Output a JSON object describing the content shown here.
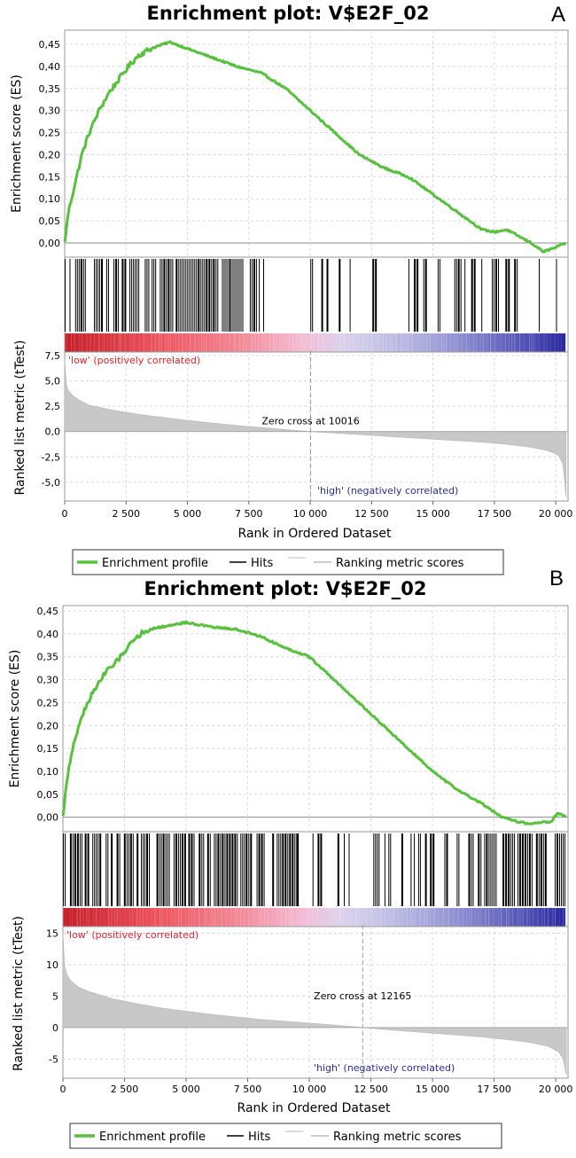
{
  "chart_data": [
    {
      "panel_letter": "A",
      "type": "line",
      "title": "Enrichment plot: V$E2F_02",
      "es_ylabel": "Enrichment score (ES)",
      "ranked_ylabel": "Ranked list metric (tTest)",
      "xlabel": "Rank in Ordered Dataset",
      "xlim": [
        0,
        20500
      ],
      "x_ticks": [
        0,
        2500,
        5000,
        7500,
        10000,
        12500,
        15000,
        17500,
        20000
      ],
      "x_tick_labels": [
        "0",
        "2 500",
        "5 000",
        "7 500",
        "10 000",
        "12 500",
        "15 000",
        "17 500",
        "20 000"
      ],
      "es_ylim": [
        -0.02,
        0.47
      ],
      "es_ticks": [
        0.0,
        0.05,
        0.1,
        0.15,
        0.2,
        0.25,
        0.3,
        0.35,
        0.4,
        0.45
      ],
      "es_tick_labels": [
        "0,00",
        "0,05",
        "0,10",
        "0,15",
        "0,20",
        "0,25",
        "0,30",
        "0,35",
        "0,40",
        "0,45"
      ],
      "es_curve": {
        "x": [
          0,
          150,
          400,
          700,
          1000,
          1400,
          1800,
          2200,
          2600,
          3000,
          3500,
          4000,
          4300,
          5000,
          6000,
          7000,
          8000,
          9000,
          10000,
          11000,
          12000,
          13000,
          14000,
          15000,
          16000,
          17000,
          17500,
          18000,
          19000,
          19500,
          20000,
          20400
        ],
        "y": [
          0.0,
          0.07,
          0.13,
          0.2,
          0.25,
          0.3,
          0.34,
          0.37,
          0.4,
          0.425,
          0.44,
          0.45,
          0.455,
          0.44,
          0.42,
          0.4,
          0.385,
          0.35,
          0.3,
          0.25,
          0.2,
          0.17,
          0.15,
          0.11,
          0.07,
          0.03,
          0.025,
          0.03,
          0.0,
          -0.02,
          -0.01,
          0.0
        ]
      },
      "hit_density": [
        {
          "from": 0,
          "to": 7800,
          "density": 0.8
        },
        {
          "from": 7800,
          "to": 10500,
          "density": 0.3
        },
        {
          "from": 10500,
          "to": 14000,
          "density": 0.2
        },
        {
          "from": 14000,
          "to": 17800,
          "density": 0.5
        },
        {
          "from": 17800,
          "to": 19500,
          "density": 0.25
        },
        {
          "from": 19500,
          "to": 20400,
          "density": 0.4
        }
      ],
      "ranked_ylim": [
        -6.5,
        7.5
      ],
      "ranked_ticks": [
        -5.0,
        -2.5,
        0.0,
        2.5,
        5.0,
        7.5
      ],
      "ranked_tick_labels": [
        "-5,0",
        "-2,5",
        "0,0",
        "2,5",
        "5,0",
        "7,5"
      ],
      "ranked_curve": {
        "x": [
          0,
          30,
          100,
          300,
          600,
          1000,
          2000,
          3000,
          4000,
          5000,
          6000,
          7000,
          8000,
          9000,
          10016,
          11000,
          12000,
          13000,
          14000,
          15000,
          16000,
          17000,
          18000,
          19000,
          19700,
          20100,
          20300,
          20420
        ],
        "y": [
          7.0,
          5.2,
          4.2,
          3.6,
          3.1,
          2.6,
          2.1,
          1.7,
          1.4,
          1.1,
          0.85,
          0.6,
          0.4,
          0.2,
          0.0,
          -0.15,
          -0.3,
          -0.45,
          -0.6,
          -0.75,
          -0.9,
          -1.05,
          -1.25,
          -1.55,
          -1.9,
          -2.3,
          -3.2,
          -6.5
        ]
      },
      "zero_cross_rank": 10016,
      "zero_cross_label": "Zero cross at 10016",
      "low_label": "'low' (positively correlated)",
      "high_label": "'high' (negatively correlated)",
      "legend": [
        "Enrichment profile",
        "Hits",
        "Ranking metric scores"
      ]
    },
    {
      "panel_letter": "B",
      "type": "line",
      "title": "Enrichment plot: V$E2F_02",
      "es_ylabel": "Enrichment score (ES)",
      "ranked_ylabel": "Ranked list metric (tTest)",
      "xlabel": "Rank in Ordered Dataset",
      "xlim": [
        0,
        20500
      ],
      "x_ticks": [
        0,
        2500,
        5000,
        7500,
        10000,
        12500,
        15000,
        17500,
        20000
      ],
      "x_tick_labels": [
        "0",
        "2 500",
        "5 000",
        "7 500",
        "10 000",
        "12 500",
        "15 000",
        "17 500",
        "20 000"
      ],
      "es_ylim": [
        -0.02,
        0.45
      ],
      "es_ticks": [
        0.0,
        0.05,
        0.1,
        0.15,
        0.2,
        0.25,
        0.3,
        0.35,
        0.4,
        0.45
      ],
      "es_tick_labels": [
        "0,00",
        "0,05",
        "0,10",
        "0,15",
        "0,20",
        "0,25",
        "0,30",
        "0,35",
        "0,40",
        "0,45"
      ],
      "es_curve": {
        "x": [
          0,
          150,
          400,
          700,
          1000,
          1400,
          1800,
          2200,
          2600,
          3000,
          3500,
          4000,
          4500,
          5000,
          5500,
          6000,
          7000,
          8000,
          9000,
          10000,
          11000,
          12000,
          13000,
          14000,
          15000,
          16000,
          17000,
          17800,
          18500,
          19000,
          19500,
          19800,
          20100,
          20400
        ],
        "y": [
          0.0,
          0.08,
          0.15,
          0.21,
          0.25,
          0.29,
          0.32,
          0.34,
          0.37,
          0.395,
          0.41,
          0.415,
          0.42,
          0.425,
          0.42,
          0.415,
          0.41,
          0.395,
          0.37,
          0.35,
          0.3,
          0.25,
          0.2,
          0.15,
          0.1,
          0.06,
          0.03,
          0.0,
          -0.01,
          -0.015,
          -0.01,
          -0.01,
          0.01,
          0.0
        ]
      },
      "hit_density": [
        {
          "from": 0,
          "to": 9500,
          "density": 0.8
        },
        {
          "from": 9500,
          "to": 11700,
          "density": 0.35
        },
        {
          "from": 11700,
          "to": 12600,
          "density": 0.05
        },
        {
          "from": 12600,
          "to": 17000,
          "density": 0.5
        },
        {
          "from": 17000,
          "to": 20400,
          "density": 0.75
        }
      ],
      "ranked_ylim": [
        -7.5,
        15.5
      ],
      "ranked_ticks": [
        -5,
        0,
        5,
        10,
        15
      ],
      "ranked_tick_labels": [
        "-5",
        "0",
        "5",
        "10",
        "15"
      ],
      "ranked_curve": {
        "x": [
          0,
          20,
          60,
          150,
          300,
          600,
          1000,
          2000,
          3000,
          4000,
          5000,
          6000,
          7000,
          8000,
          9000,
          10000,
          11000,
          12165,
          13000,
          14000,
          15000,
          16000,
          17000,
          18000,
          19000,
          19700,
          20100,
          20300,
          20430
        ],
        "y": [
          15.0,
          12.0,
          10.0,
          8.5,
          7.5,
          6.5,
          5.8,
          4.6,
          3.8,
          3.1,
          2.6,
          2.1,
          1.7,
          1.3,
          1.0,
          0.7,
          0.4,
          0.0,
          -0.3,
          -0.6,
          -0.9,
          -1.2,
          -1.5,
          -1.9,
          -2.4,
          -3.0,
          -3.8,
          -5.0,
          -7.5
        ]
      },
      "zero_cross_rank": 12165,
      "zero_cross_label": "Zero cross at 12165",
      "low_label": "'low' (positively correlated)",
      "high_label": "'high' (negatively correlated)",
      "legend": [
        "Enrichment profile",
        "Hits",
        "Ranking metric scores"
      ]
    }
  ],
  "colors": {
    "es_line": "#56c13a",
    "hits": "#000000",
    "ranked_fill": "#c8c8c8",
    "low_text": "#e8202a",
    "high_text": "#2c2c9e",
    "grid": "#d7d7e6",
    "zero_line": "#8c8c8c"
  }
}
